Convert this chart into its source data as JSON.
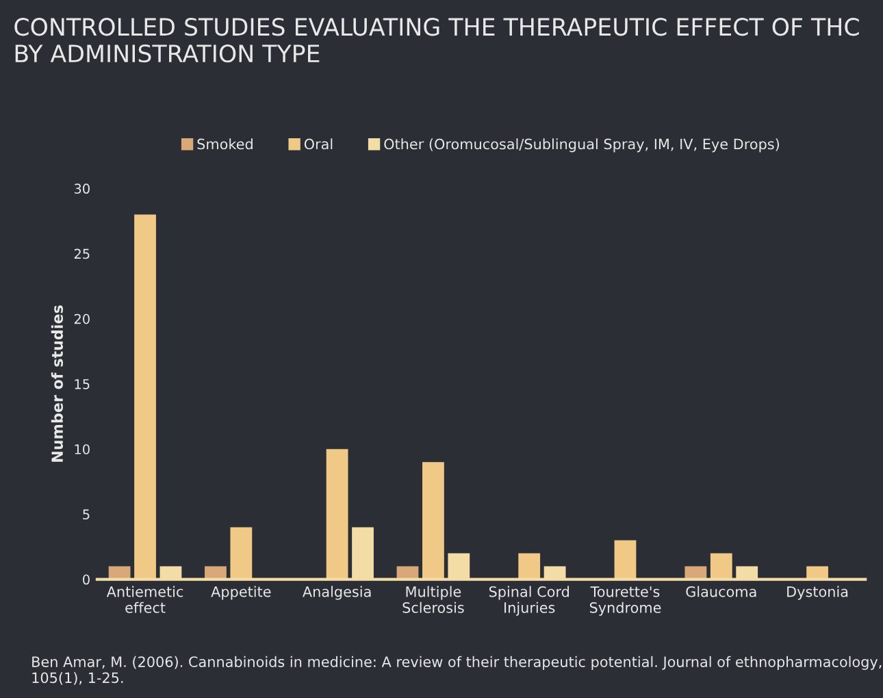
{
  "chart_data": {
    "type": "bar",
    "title": "CONTROLLED STUDIES EVALUATING THE THERAPEUTIC EFFECT OF THC\nBY ADMINISTRATION TYPE",
    "ylabel": "Number of studies",
    "categories": [
      "Antiemetic\neffect",
      "Appetite",
      "Analgesia",
      "Multiple\nSclerosis",
      "Spinal Cord\nInjuries",
      "Tourette's\nSyndrome",
      "Glaucoma",
      "Dystonia"
    ],
    "series": [
      {
        "name": "Smoked",
        "color": "#d9a878",
        "values": [
          1,
          1,
          null,
          1,
          null,
          null,
          1,
          null
        ]
      },
      {
        "name": "Oral",
        "color": "#f0c987",
        "values": [
          28,
          4,
          10,
          9,
          2,
          3,
          2,
          1
        ]
      },
      {
        "name": "Other (Oromucosal/Sublingual Spray, IM, IV, Eye Drops)",
        "color": "#f3dca6",
        "values": [
          1,
          null,
          4,
          2,
          1,
          null,
          1,
          null
        ]
      }
    ],
    "ylim": [
      0,
      30
    ],
    "yticks": [
      0,
      5,
      10,
      15,
      20,
      25,
      30
    ],
    "grid": false,
    "legend": "top",
    "annotations": [
      "Ben Amar, M. (2006). Cannabinoids in medicine: A review of their therapeutic potential. Journal of ethnopharmacology, 105(1), 1-25."
    ]
  }
}
